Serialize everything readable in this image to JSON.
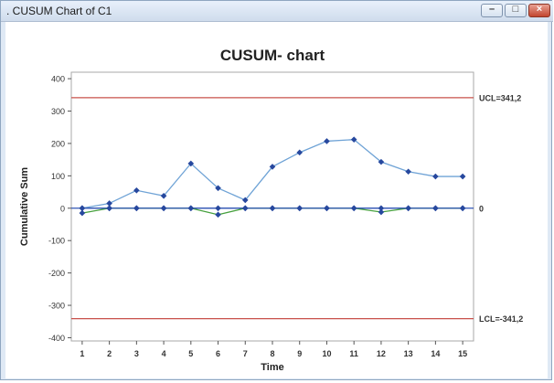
{
  "window": {
    "title": ". CUSUM Chart of C1",
    "minimize_label": "–",
    "maximize_label": "□",
    "close_label": "×"
  },
  "chart_data": {
    "type": "line",
    "title": "CUSUM- chart",
    "xlabel": "Time",
    "ylabel": "Cumulative Sum",
    "x": [
      1,
      2,
      3,
      4,
      5,
      6,
      7,
      8,
      9,
      10,
      11,
      12,
      13,
      14,
      15
    ],
    "xlim": [
      0.6,
      15.4
    ],
    "ylim": [
      -410,
      420
    ],
    "yticks": [
      400,
      300,
      200,
      100,
      0,
      -100,
      -200,
      -300,
      -400
    ],
    "grid": false,
    "series": [
      {
        "values": [
          0,
          15,
          55,
          38,
          138,
          62,
          25,
          128,
          172,
          207,
          212,
          143,
          113,
          98,
          98
        ],
        "color": "#6fa3d6"
      },
      {
        "values": [
          -15,
          0,
          0,
          0,
          0,
          -20,
          0,
          0,
          0,
          0,
          0,
          -12,
          0,
          0,
          0
        ],
        "color": "#46a03e"
      },
      {
        "values": [
          0,
          0,
          0,
          0,
          0,
          0,
          0,
          0,
          0,
          0,
          0,
          0,
          0,
          0,
          0
        ],
        "color": "#2f55b4"
      }
    ],
    "marker_color": "#27489e",
    "reference_lines": [
      {
        "value": 341.2,
        "label": "UCL=341,2",
        "color": "#c8504a"
      },
      {
        "value": 0,
        "label": "0",
        "color": "#2f55b4"
      },
      {
        "value": -341.2,
        "label": "LCL=-341,2",
        "color": "#c8504a"
      }
    ]
  }
}
